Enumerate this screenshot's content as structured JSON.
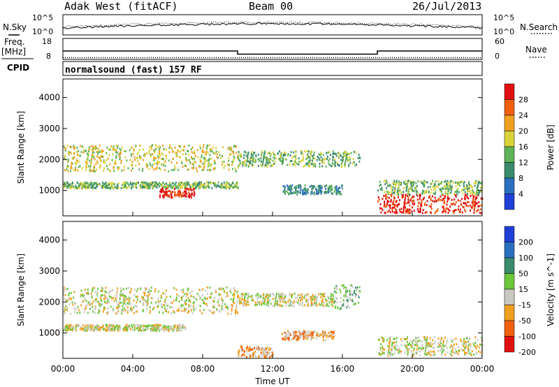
{
  "header": {
    "station": "Adak West (fitACF)",
    "beam": "Beam 00",
    "date": "26/Jul/2013"
  },
  "left_labels": {
    "nsky": "N.Sky",
    "freq_line1": "Freq.",
    "freq_line2": "[MHz]",
    "cpid": "CPID"
  },
  "right_labels": {
    "nsearch": "N.Search",
    "nave": "Nave"
  },
  "nsky_axis": {
    "top": "10^5",
    "bottom": "10^0"
  },
  "nsearch_axis": {
    "top": "10^5",
    "bottom": "10^0"
  },
  "freq_axis": {
    "top": "18",
    "bottom": "8"
  },
  "nave_axis": {
    "top": "60",
    "bottom": "0"
  },
  "cpid_text": "normalsound (fast) 157 RF",
  "power_panel": {
    "ylabel": "Slant Range [km]",
    "yticks": [
      "1000",
      "2000",
      "3000",
      "4000"
    ],
    "colorbar_label": "Power [dB]",
    "colorbar_ticks": [
      "4",
      "8",
      "12",
      "16",
      "20",
      "24",
      "28"
    ],
    "colors": [
      "#1f3fd6",
      "#2b6fc0",
      "#3a8a6e",
      "#5fb35a",
      "#d9d23a",
      "#f0a020",
      "#f06010",
      "#e01010"
    ]
  },
  "velocity_panel": {
    "ylabel": "Slant Range [km]",
    "yticks": [
      "1000",
      "2000",
      "3000",
      "4000"
    ],
    "colorbar_label": "Velocity [m s^-1]",
    "colorbar_ticks": [
      "200",
      "100",
      "50",
      "15",
      "-15",
      "-50",
      "-100",
      "-200"
    ],
    "colors": [
      "#1f3fd6",
      "#2b6fc0",
      "#3a8a6e",
      "#6cc63a",
      "#c8c8c0",
      "#f0a020",
      "#f06010",
      "#e01010"
    ]
  },
  "xaxis": {
    "label": "Time UT",
    "ticks": [
      "00:00",
      "04:00",
      "08:00",
      "12:00",
      "16:00",
      "20:00",
      "00:00"
    ]
  },
  "chart_data": {
    "type": "heatmap",
    "title": "Adak West (fitACF) Beam 00 26/Jul/2013",
    "xlabel": "Time UT",
    "ylabel": "Slant Range [km]",
    "x_range_hours": [
      0,
      24
    ],
    "y_range_km": [
      180,
      4600
    ],
    "freq_mhz_segments": [
      {
        "start_h": 0,
        "end_h": 10,
        "freq": 12
      },
      {
        "start_h": 10,
        "end_h": 18,
        "freq": 10.5
      },
      {
        "start_h": 18,
        "end_h": 24,
        "freq": 12
      }
    ],
    "nave_level": 5,
    "power_features": [
      {
        "t0": 0.0,
        "t1": 10.0,
        "r0": 1100,
        "r1": 1300,
        "level": 3
      },
      {
        "t0": 0.0,
        "t1": 10.0,
        "r0": 1650,
        "r1": 2500,
        "level": 4
      },
      {
        "t0": 5.5,
        "t1": 7.5,
        "r0": 800,
        "r1": 1100,
        "level": 7
      },
      {
        "t0": 10.0,
        "t1": 17.0,
        "r0": 1800,
        "r1": 2300,
        "level": 3
      },
      {
        "t0": 12.5,
        "t1": 16.0,
        "r0": 900,
        "r1": 1200,
        "level": 2
      },
      {
        "t0": 18.0,
        "t1": 24.0,
        "r0": 300,
        "r1": 900,
        "level": 7
      },
      {
        "t0": 18.0,
        "t1": 24.0,
        "r0": 900,
        "r1": 1350,
        "level": 3
      }
    ],
    "velocity_features": [
      {
        "t0": 0.0,
        "t1": 10.0,
        "r0": 1650,
        "r1": 2500,
        "level": 4
      },
      {
        "t0": 0.0,
        "t1": 7.0,
        "r0": 1100,
        "r1": 1300,
        "level": 4
      },
      {
        "t0": 10.0,
        "t1": 15.5,
        "r0": 1900,
        "r1": 2300,
        "level": 4
      },
      {
        "t0": 12.5,
        "t1": 15.5,
        "r0": 800,
        "r1": 1100,
        "level": 5
      },
      {
        "t0": 10.0,
        "t1": 12.0,
        "r0": 250,
        "r1": 600,
        "level": 5
      },
      {
        "t0": 15.5,
        "t1": 17.0,
        "r0": 1800,
        "r1": 2600,
        "level": 3
      },
      {
        "t0": 18.0,
        "t1": 24.0,
        "r0": 300,
        "r1": 900,
        "level": 4
      }
    ]
  }
}
